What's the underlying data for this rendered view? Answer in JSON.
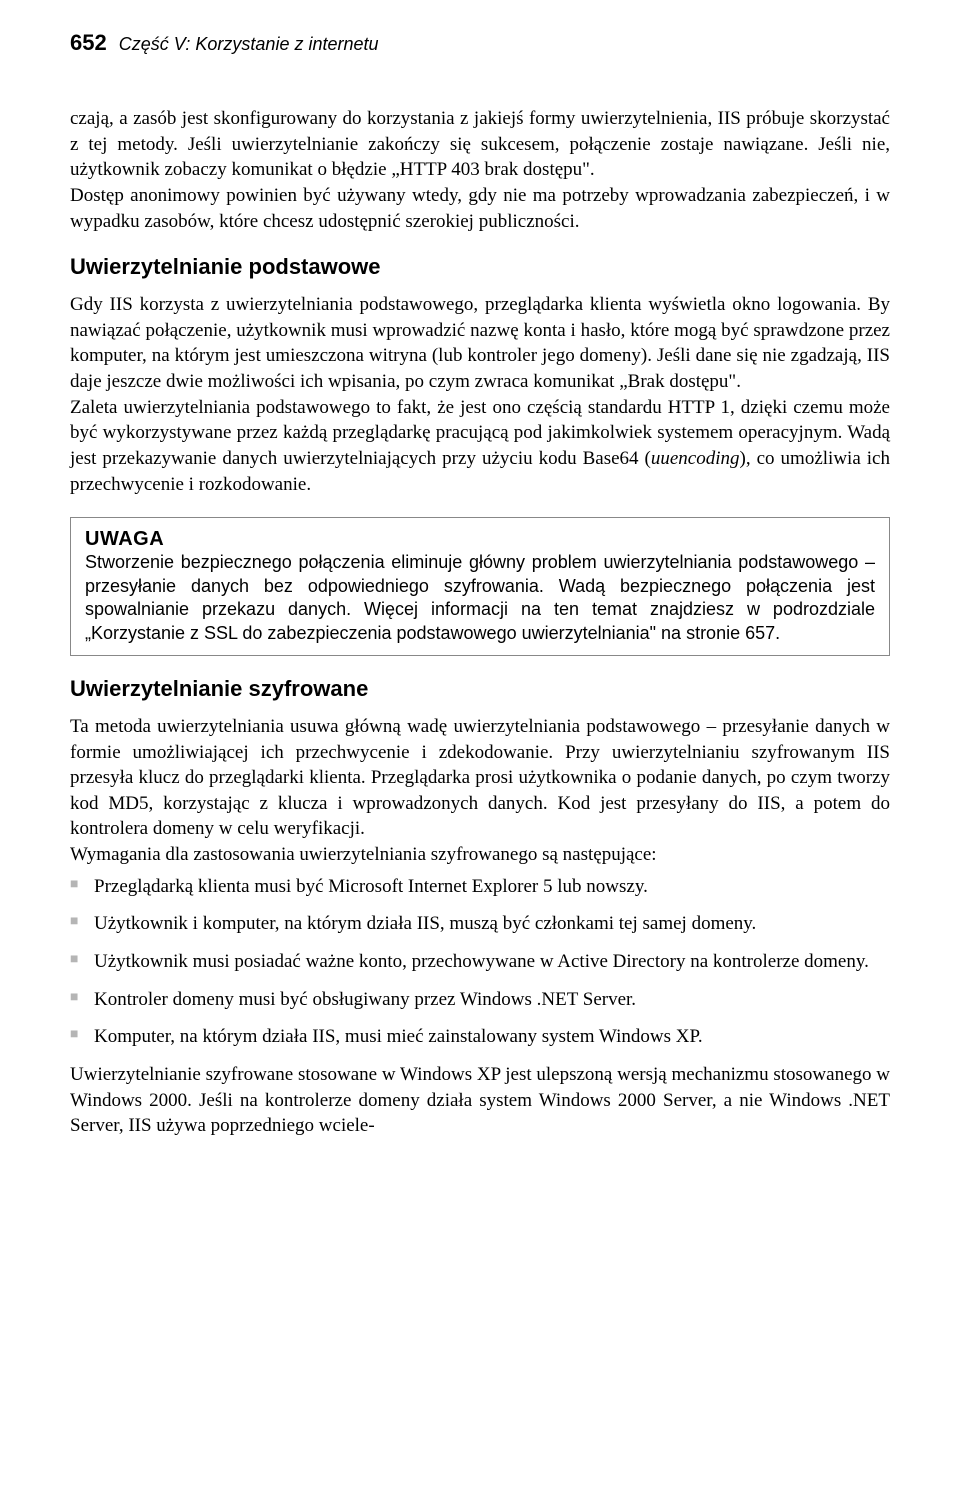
{
  "header": {
    "page_number": "652",
    "section": "Część V: Korzystanie z internetu"
  },
  "para_intro_1": "czają, a zasób jest skonfigurowany do korzystania z jakiejś formy uwierzytelnienia, IIS próbuje skorzystać z tej metody. Jeśli uwierzytelnianie zakończy się sukcesem, połączenie zostaje nawiązane. Jeśli nie, użytkownik zobaczy komunikat o błędzie „HTTP 403 brak dostępu\".",
  "para_intro_2": "Dostęp anonimowy powinien być używany wtedy, gdy nie ma potrzeby wprowadzania zabezpieczeń, i w wypadku zasobów, które chcesz udostępnić szerokiej publiczności.",
  "heading_1": "Uwierzytelnianie podstawowe",
  "para_h1_1": "Gdy IIS korzysta z uwierzytelniania podstawowego, przeglądarka klienta wyświetla okno logowania. By nawiązać połączenie, użytkownik musi wprowadzić nazwę konta i hasło, które mogą być sprawdzone przez komputer, na którym jest umieszczona witryna (lub kontroler jego domeny). Jeśli dane się nie zgadzają, IIS daje jeszcze dwie możliwości ich wpisania, po czym zwraca komunikat „Brak dostępu\".",
  "para_h1_2a": "Zaleta uwierzytelniania podstawowego to fakt, że jest ono częścią standardu HTTP 1, dzięki czemu może być wykorzystywane przez każdą przeglądarkę pracującą pod jakimkolwiek systemem operacyjnym. Wadą jest przekazywanie danych uwierzytelniających przy użyciu kodu Base64 (",
  "para_h1_2_ital": "uuencoding",
  "para_h1_2b": "), co umożliwia ich przechwycenie i rozkodowanie.",
  "note": {
    "label": "UWAGA",
    "text": "Stworzenie bezpiecznego połączenia eliminuje główny problem uwierzytelniania podstawowego – przesyłanie danych bez odpowiedniego szyfrowania. Wadą bezpiecznego połączenia jest spowalnianie przekazu danych. Więcej informacji na ten temat znajdziesz w podrozdziale „Korzystanie z SSL do zabezpieczenia podstawowego uwierzytelniania\" na stronie 657."
  },
  "heading_2": "Uwierzytelnianie szyfrowane",
  "para_h2_1": "Ta metoda uwierzytelniania usuwa główną wadę uwierzytelniania podstawowego – przesyłanie danych w formie umożliwiającej ich przechwycenie i zdekodowanie. Przy uwierzytelnianiu szyfrowanym IIS przesyła klucz do przeglądarki klienta. Przeglądarka prosi użytkownika o podanie danych, po czym tworzy kod MD5, korzystając z klucza i wprowadzonych danych. Kod jest przesyłany do IIS, a potem do kontrolera domeny w celu weryfikacji.",
  "para_h2_2": "Wymagania dla zastosowania uwierzytelniania szyfrowanego są następujące:",
  "req_list": [
    "Przeglądarką klienta musi być Microsoft Internet Explorer 5 lub nowszy.",
    "Użytkownik i komputer, na którym działa IIS, muszą być członkami tej samej domeny.",
    "Użytkownik musi posiadać ważne konto, przechowywane w Active Directory na kontrolerze domeny.",
    "Kontroler domeny musi być obsługiwany przez Windows .NET Server.",
    "Komputer, na którym działa IIS, musi mieć zainstalowany system Windows XP."
  ],
  "para_h2_3": "Uwierzytelnianie szyfrowane stosowane w Windows XP jest ulepszoną wersją mechanizmu stosowanego w Windows 2000. Jeśli na kontrolerze domeny działa system Windows 2000 Server, a nie Windows .NET Server, IIS używa poprzedniego wciele-"
}
